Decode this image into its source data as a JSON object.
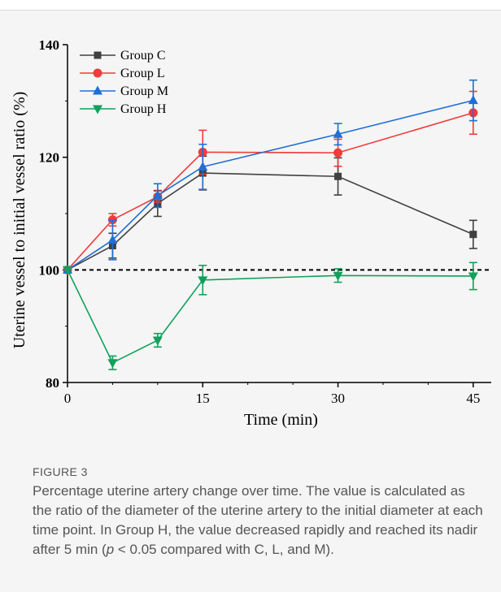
{
  "chart_data": {
    "type": "line",
    "xlabel": "Time (min)",
    "ylabel": "Uterine vessel to initial vessel ratio (%)",
    "x": [
      0,
      5,
      10,
      15,
      30,
      45
    ],
    "xticks": [
      0,
      15,
      30,
      45
    ],
    "yticks": [
      80,
      100,
      120,
      140
    ],
    "xlim": [
      0,
      47
    ],
    "ylim": [
      80,
      140
    ],
    "reference_line": {
      "y": 100,
      "style": "dashed"
    },
    "legend_position": "top-left",
    "series": [
      {
        "name": "Group C",
        "color": "#404040",
        "marker": "square",
        "values": [
          100,
          104.3,
          111.8,
          117.2,
          116.6,
          106.3
        ],
        "errors": [
          0,
          2.2,
          2.3,
          3.0,
          3.3,
          2.5
        ]
      },
      {
        "name": "Group L",
        "color": "#f23b3b",
        "marker": "circle",
        "values": [
          100,
          108.9,
          113.0,
          120.9,
          120.8,
          127.9
        ],
        "errors": [
          0,
          1.1,
          1.0,
          3.9,
          2.4,
          3.8
        ]
      },
      {
        "name": "Group M",
        "color": "#1f6fd6",
        "marker": "triangle-up",
        "values": [
          100,
          105.3,
          113.2,
          118.3,
          124.1,
          130.1
        ],
        "errors": [
          0,
          3.5,
          2.1,
          4.0,
          1.9,
          3.6
        ]
      },
      {
        "name": "Group H",
        "color": "#12a05c",
        "marker": "triangle-down",
        "values": [
          100,
          83.5,
          87.5,
          98.2,
          99.0,
          98.9
        ],
        "errors": [
          0,
          1.2,
          1.2,
          2.6,
          1.2,
          2.4
        ]
      }
    ]
  },
  "caption": {
    "label": "FIGURE 3",
    "text": "Percentage uterine artery change over time. The value is calculated as the ratio of the diameter of the uterine artery to the initial diameter at each time point. In Group H, the value decreased rapidly and reached its nadir after 5 min (",
    "p_symbol": "p",
    "text_end": " < 0.05 compared with C, L, and M)."
  }
}
